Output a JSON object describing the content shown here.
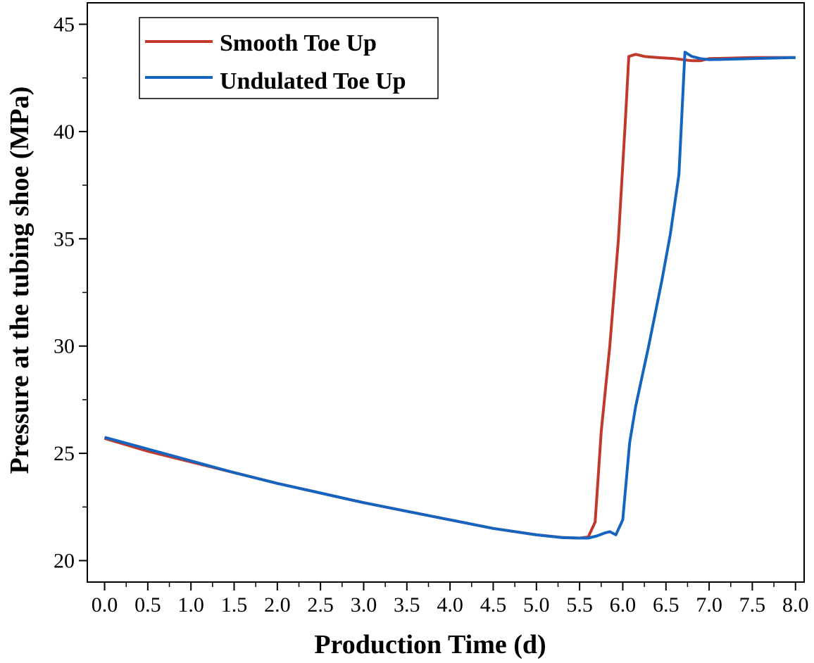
{
  "chart_data": {
    "type": "line",
    "xlabel": "Production Time (d)",
    "ylabel": "Pressure at the tubing shoe (MPa)",
    "xlim": [
      -0.2,
      8.1
    ],
    "ylim": [
      19.0,
      46.0
    ],
    "x_ticks": [
      "0.0",
      "0.5",
      "1.0",
      "1.5",
      "2.0",
      "2.5",
      "3.0",
      "3.5",
      "4.0",
      "4.5",
      "5.0",
      "5.5",
      "6.0",
      "6.5",
      "7.0",
      "7.5",
      "8.0"
    ],
    "y_ticks": [
      "20",
      "25",
      "30",
      "35",
      "40",
      "45"
    ],
    "grid": false,
    "legend_position": "top-left",
    "series": [
      {
        "name": "Smooth Toe Up",
        "color": "#c0392b",
        "x": [
          0.0,
          0.5,
          1.0,
          1.5,
          2.0,
          2.5,
          3.0,
          3.5,
          4.0,
          4.5,
          5.0,
          5.3,
          5.5,
          5.6,
          5.68,
          5.75,
          5.85,
          5.95,
          6.03,
          6.07,
          6.15,
          6.25,
          6.4,
          6.6,
          6.8,
          6.9,
          7.0,
          7.5,
          8.0
        ],
        "y": [
          25.7,
          25.1,
          24.6,
          24.1,
          23.6,
          23.15,
          22.7,
          22.3,
          21.9,
          21.5,
          21.2,
          21.08,
          21.05,
          21.1,
          21.8,
          26.0,
          30.0,
          35.0,
          40.5,
          43.5,
          43.6,
          43.5,
          43.45,
          43.4,
          43.3,
          43.3,
          43.4,
          43.45,
          43.45
        ]
      },
      {
        "name": "Undulated Toe Up",
        "color": "#1565c0",
        "x": [
          0.0,
          0.5,
          1.0,
          1.5,
          2.0,
          2.5,
          3.0,
          3.5,
          4.0,
          4.5,
          5.0,
          5.3,
          5.5,
          5.6,
          5.7,
          5.8,
          5.85,
          5.92,
          6.0,
          6.08,
          6.15,
          6.3,
          6.45,
          6.55,
          6.65,
          6.72,
          6.8,
          6.9,
          7.0,
          7.5,
          8.0
        ],
        "y": [
          25.75,
          25.2,
          24.65,
          24.1,
          23.6,
          23.15,
          22.7,
          22.3,
          21.9,
          21.5,
          21.2,
          21.07,
          21.05,
          21.05,
          21.15,
          21.3,
          21.35,
          21.2,
          21.9,
          25.5,
          27.2,
          30.0,
          33.0,
          35.2,
          38.0,
          43.7,
          43.5,
          43.4,
          43.35,
          43.4,
          43.45
        ]
      }
    ]
  }
}
